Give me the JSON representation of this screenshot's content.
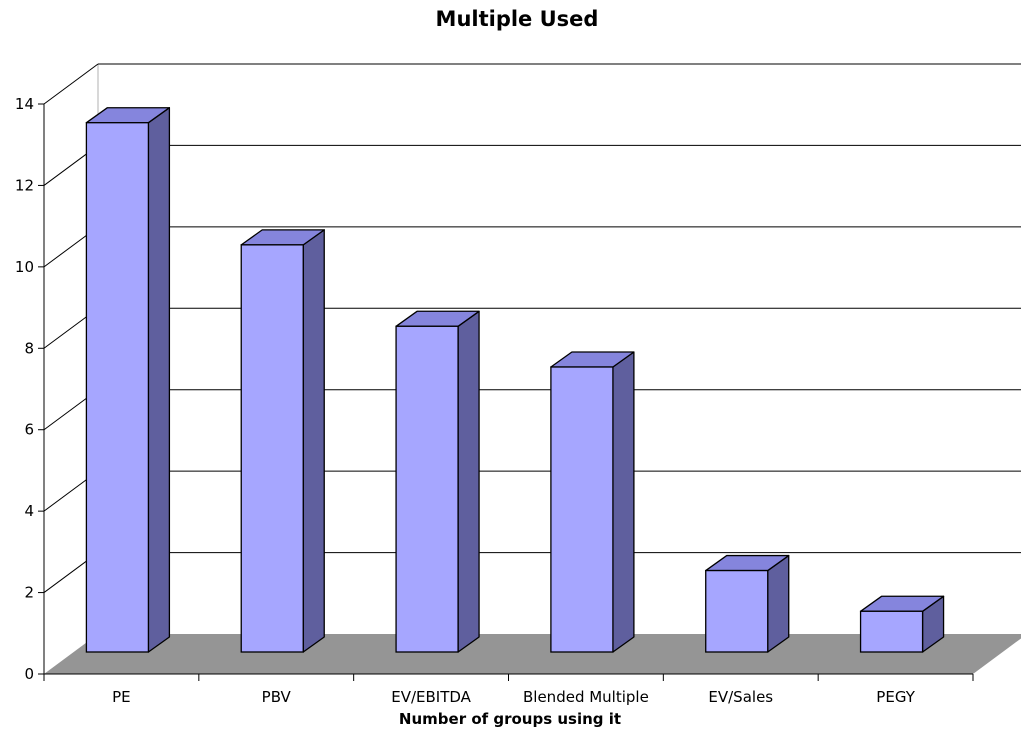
{
  "chart_data": {
    "type": "bar",
    "title": "Multiple Used",
    "xlabel": "Number of groups using it",
    "ylabel": "",
    "categories": [
      "PE",
      "PBV",
      "EV/EBITDA",
      "Blended Multiple",
      "EV/Sales",
      "PEGY"
    ],
    "series": [
      {
        "values": [
          13,
          10,
          8,
          7,
          2,
          1
        ]
      }
    ],
    "ylim": [
      0,
      14
    ],
    "yticks": [
      "0",
      "2",
      "4",
      "6",
      "8",
      "10",
      "12",
      "14"
    ],
    "grid": true,
    "legend": "none",
    "style": "3d",
    "colors": {
      "bar_front": "#a6a6ff",
      "bar_top": "#8585dd",
      "bar_side": "#5f5f9e",
      "floor": "#959595",
      "gridline": "#000000"
    }
  }
}
